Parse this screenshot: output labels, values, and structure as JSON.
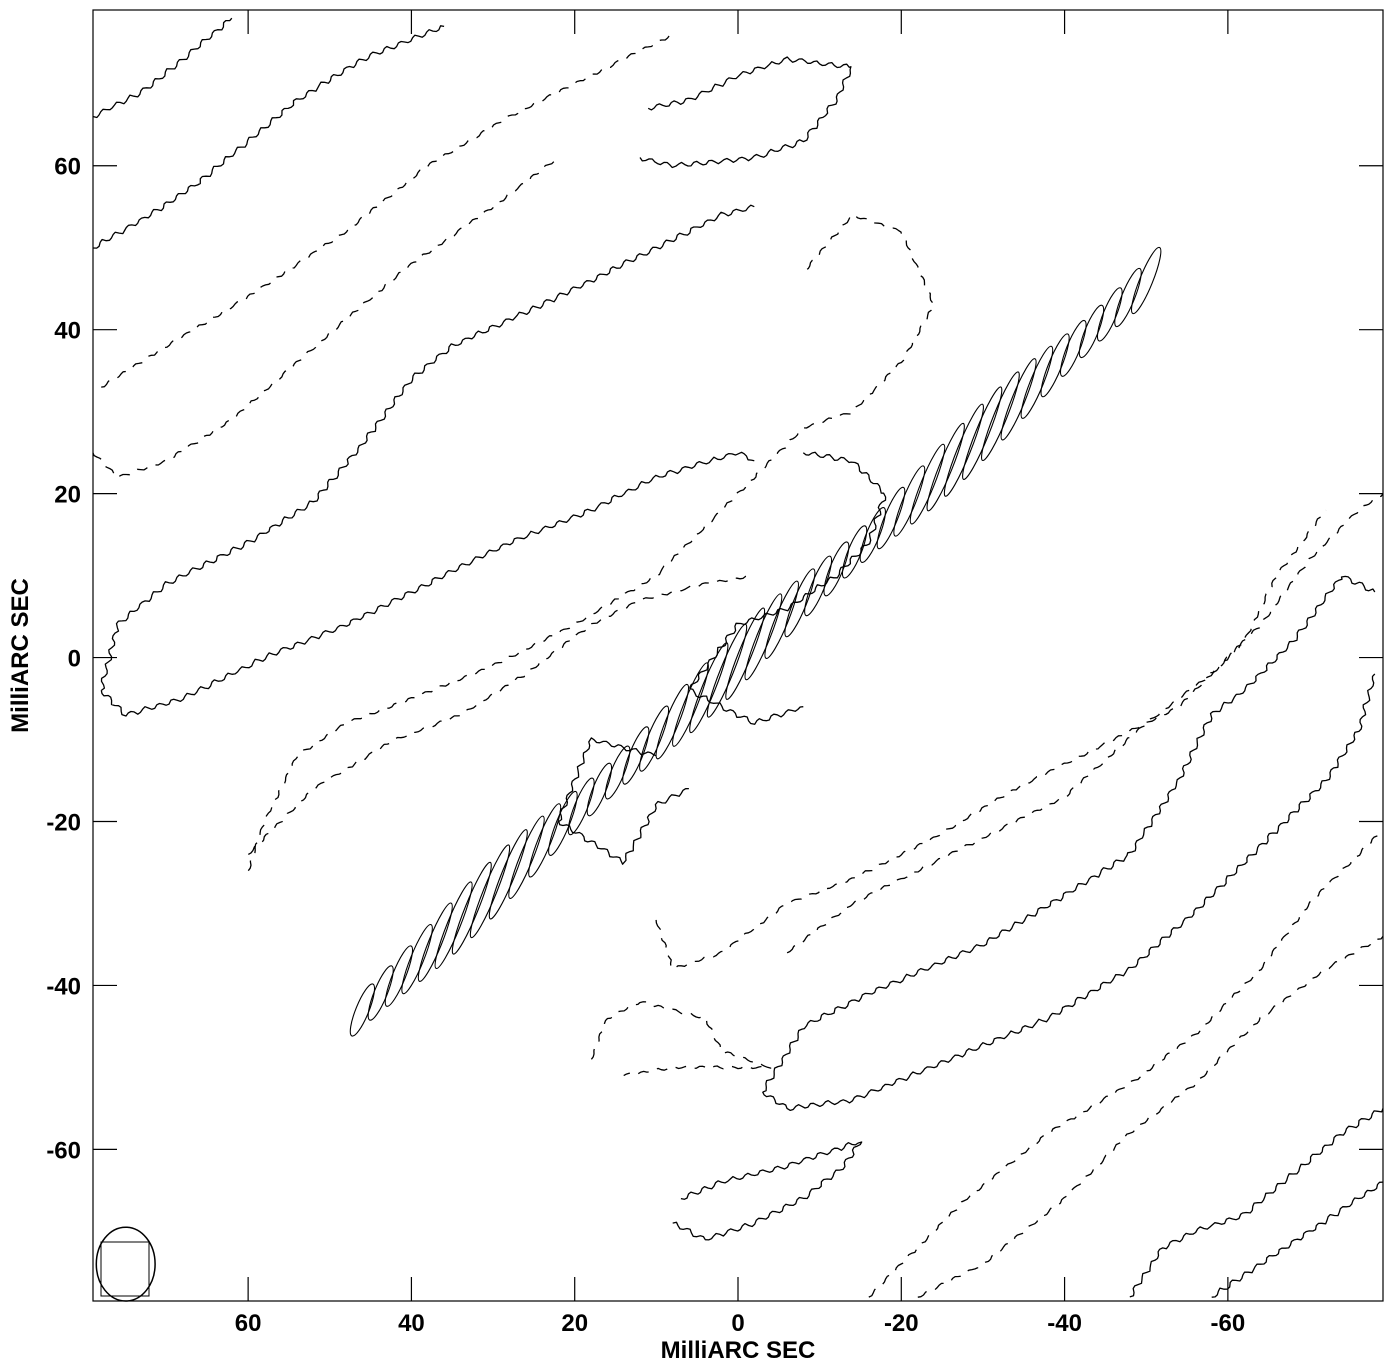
{
  "chart_data": {
    "type": "contour",
    "title": "",
    "xlabel": "MilliARC SEC",
    "ylabel": "MilliARC SEC",
    "xlim": [
      79,
      -79
    ],
    "ylim": [
      -78.5,
      79
    ],
    "xticks": [
      60,
      40,
      20,
      0,
      -20,
      -40,
      -60
    ],
    "yticks": [
      60,
      40,
      20,
      0,
      -20,
      -40,
      -60
    ],
    "x_tick_labels": [
      "60",
      "40",
      "20",
      "0",
      "-20",
      "-40",
      "-60"
    ],
    "y_tick_labels": [
      "60",
      "40",
      "20",
      "0",
      "-20",
      "-40",
      "-60"
    ],
    "grid": false,
    "beam": {
      "x": 75,
      "y": -74,
      "major": 4.5,
      "minor": 3.6,
      "pa": 0
    },
    "contours": [
      {
        "name": "positive-stripe-upper-left",
        "style": "solid",
        "points": [
          [
            78,
            -4
          ],
          [
            75,
            -7
          ],
          [
            68,
            -5
          ],
          [
            58,
            0
          ],
          [
            48,
            4
          ],
          [
            38,
            9
          ],
          [
            28,
            14
          ],
          [
            18,
            18
          ],
          [
            10,
            22
          ],
          [
            0,
            25
          ],
          [
            -2,
            24
          ]
        ],
        "points_b": [
          [
            78,
            -4
          ],
          [
            76,
            4
          ],
          [
            70,
            9
          ],
          [
            60,
            14
          ],
          [
            52,
            19
          ],
          [
            46,
            26
          ],
          [
            40,
            34
          ],
          [
            35,
            38
          ],
          [
            22,
            44
          ],
          [
            10,
            50
          ],
          [
            2,
            54
          ],
          [
            -2,
            55
          ]
        ]
      },
      {
        "name": "positive-stripe-lower-right",
        "style": "solid",
        "points": [
          [
            -3,
            -53
          ],
          [
            -6,
            -55
          ],
          [
            -14,
            -54
          ],
          [
            -26,
            -49
          ],
          [
            -38,
            -44
          ],
          [
            -48,
            -38
          ],
          [
            -56,
            -31
          ],
          [
            -64,
            -23
          ],
          [
            -72,
            -15
          ],
          [
            -76,
            -9
          ],
          [
            -78,
            -2
          ]
        ],
        "points_b": [
          [
            -3,
            -53
          ],
          [
            -8,
            -45
          ],
          [
            -16,
            -41
          ],
          [
            -30,
            -35
          ],
          [
            -40,
            -29
          ],
          [
            -48,
            -24
          ],
          [
            -54,
            -15
          ],
          [
            -58,
            -7
          ],
          [
            -62,
            -4
          ],
          [
            -68,
            2
          ],
          [
            -74,
            10
          ],
          [
            -78,
            8
          ]
        ]
      },
      {
        "name": "positive-corner-upper-left",
        "style": "solid",
        "points": [
          [
            79,
            66
          ],
          [
            73,
            69
          ],
          [
            68,
            73
          ],
          [
            62,
            78
          ]
        ],
        "points_b": [
          [
            79,
            50
          ],
          [
            72,
            54
          ],
          [
            66,
            58
          ],
          [
            60,
            63
          ],
          [
            54,
            68
          ],
          [
            46,
            73
          ],
          [
            36,
            77
          ]
        ]
      },
      {
        "name": "positive-corner-lower-right",
        "style": "solid",
        "points": [
          [
            -48,
            -78
          ],
          [
            -52,
            -72
          ],
          [
            -56,
            -70
          ],
          [
            -62,
            -68
          ],
          [
            -68,
            -63
          ],
          [
            -74,
            -58
          ],
          [
            -79,
            -55
          ]
        ],
        "points_b": [
          [
            -58,
            -78
          ],
          [
            -64,
            -74
          ],
          [
            -70,
            -70
          ],
          [
            -76,
            -66
          ],
          [
            -79,
            -64
          ]
        ]
      },
      {
        "name": "positive-blob-top",
        "style": "solid",
        "points": [
          [
            11,
            67
          ],
          [
            6,
            68
          ],
          [
            0,
            71
          ],
          [
            -6,
            73
          ],
          [
            -14,
            72
          ],
          [
            -12,
            68
          ],
          [
            -8,
            63
          ],
          [
            -2,
            61
          ],
          [
            8,
            60
          ],
          [
            12,
            61
          ]
        ]
      },
      {
        "name": "positive-blob-bottom",
        "style": "solid",
        "points": [
          [
            7,
            -66
          ],
          [
            2,
            -64
          ],
          [
            -6,
            -62
          ],
          [
            -15,
            -59
          ],
          [
            -13,
            -62
          ],
          [
            -8,
            -66
          ],
          [
            -2,
            -69
          ],
          [
            4,
            -71
          ],
          [
            8,
            -69
          ]
        ]
      },
      {
        "name": "positive-jet-core",
        "style": "solid",
        "points": [
          [
            -8,
            25
          ],
          [
            -14,
            24
          ],
          [
            -18,
            20
          ],
          [
            -16,
            14
          ],
          [
            -12,
            10
          ],
          [
            -6,
            6
          ],
          [
            0,
            4
          ],
          [
            6,
            -4
          ],
          [
            -2,
            -8
          ],
          [
            -8,
            -6
          ]
        ]
      },
      {
        "name": "positive-jet-knot-south",
        "style": "solid",
        "points": [
          [
            6,
            -16
          ],
          [
            10,
            -18
          ],
          [
            14,
            -25
          ],
          [
            22,
            -20
          ],
          [
            18,
            -10
          ],
          [
            10,
            -12
          ]
        ]
      },
      {
        "name": "negative-stripe-1",
        "style": "dashed",
        "points": [
          [
            78,
            33
          ],
          [
            70,
            38
          ],
          [
            60,
            44
          ],
          [
            48,
            52
          ],
          [
            38,
            60
          ],
          [
            28,
            66
          ],
          [
            18,
            71
          ],
          [
            8,
            76
          ]
        ]
      },
      {
        "name": "negative-stripe-2",
        "style": "dashed",
        "points": [
          [
            79,
            25
          ],
          [
            76,
            22
          ],
          [
            70,
            24
          ],
          [
            62,
            29
          ],
          [
            54,
            36
          ],
          [
            46,
            43
          ],
          [
            40,
            48
          ],
          [
            30,
            55
          ],
          [
            22,
            61
          ]
        ]
      },
      {
        "name": "negative-stripe-3",
        "style": "dashed",
        "points": [
          [
            60,
            -26
          ],
          [
            58,
            -20
          ],
          [
            54,
            -12
          ],
          [
            48,
            -8
          ],
          [
            40,
            -5
          ],
          [
            30,
            -1
          ],
          [
            20,
            4
          ],
          [
            10,
            10
          ],
          [
            2,
            18
          ],
          [
            -8,
            28
          ],
          [
            -14,
            30
          ],
          [
            -20,
            36
          ],
          [
            -24,
            43
          ],
          [
            -20,
            52
          ],
          [
            -14,
            54
          ],
          [
            -8,
            47
          ]
        ]
      },
      {
        "name": "negative-stripe-4",
        "style": "dashed",
        "points": [
          [
            60,
            -24
          ],
          [
            52,
            -16
          ],
          [
            42,
            -10
          ],
          [
            34,
            -7
          ],
          [
            26,
            -2
          ],
          [
            18,
            4
          ],
          [
            12,
            7
          ],
          [
            4,
            9
          ],
          [
            -2,
            10
          ]
        ]
      },
      {
        "name": "negative-stripe-5",
        "style": "dashed",
        "points": [
          [
            10,
            -32
          ],
          [
            8,
            -38
          ],
          [
            2,
            -36
          ],
          [
            -6,
            -30
          ],
          [
            -14,
            -27
          ],
          [
            -24,
            -22
          ],
          [
            -34,
            -16
          ],
          [
            -44,
            -11
          ],
          [
            -54,
            -6
          ],
          [
            -62,
            2
          ],
          [
            -66,
            10
          ],
          [
            -72,
            18
          ]
        ]
      },
      {
        "name": "negative-stripe-6",
        "style": "dashed",
        "points": [
          [
            -6,
            -36
          ],
          [
            -14,
            -30
          ],
          [
            -22,
            -26
          ],
          [
            -30,
            -22
          ],
          [
            -40,
            -17
          ],
          [
            -50,
            -8
          ],
          [
            -58,
            -2
          ],
          [
            -64,
            4
          ],
          [
            -70,
            12
          ],
          [
            -76,
            18
          ],
          [
            -79,
            20
          ]
        ]
      },
      {
        "name": "negative-stripe-7",
        "style": "dashed",
        "points": [
          [
            -16,
            -78
          ],
          [
            -20,
            -74
          ],
          [
            -28,
            -66
          ],
          [
            -38,
            -58
          ],
          [
            -48,
            -52
          ],
          [
            -56,
            -46
          ],
          [
            -64,
            -38
          ],
          [
            -70,
            -30
          ],
          [
            -76,
            -24
          ],
          [
            -79,
            -21
          ]
        ]
      },
      {
        "name": "negative-stripe-8",
        "style": "dashed",
        "points": [
          [
            -22,
            -78
          ],
          [
            -30,
            -74
          ],
          [
            -40,
            -66
          ],
          [
            -48,
            -58
          ],
          [
            -56,
            -52
          ],
          [
            -64,
            -44
          ],
          [
            -72,
            -38
          ],
          [
            -79,
            -34
          ]
        ]
      },
      {
        "name": "negative-blob-lower",
        "style": "dashed",
        "points": [
          [
            18,
            -49
          ],
          [
            16,
            -44
          ],
          [
            12,
            -42
          ],
          [
            4,
            -44
          ],
          [
            2,
            -48
          ],
          [
            -4,
            -50
          ],
          [
            8,
            -50
          ],
          [
            14,
            -51
          ]
        ]
      }
    ]
  }
}
